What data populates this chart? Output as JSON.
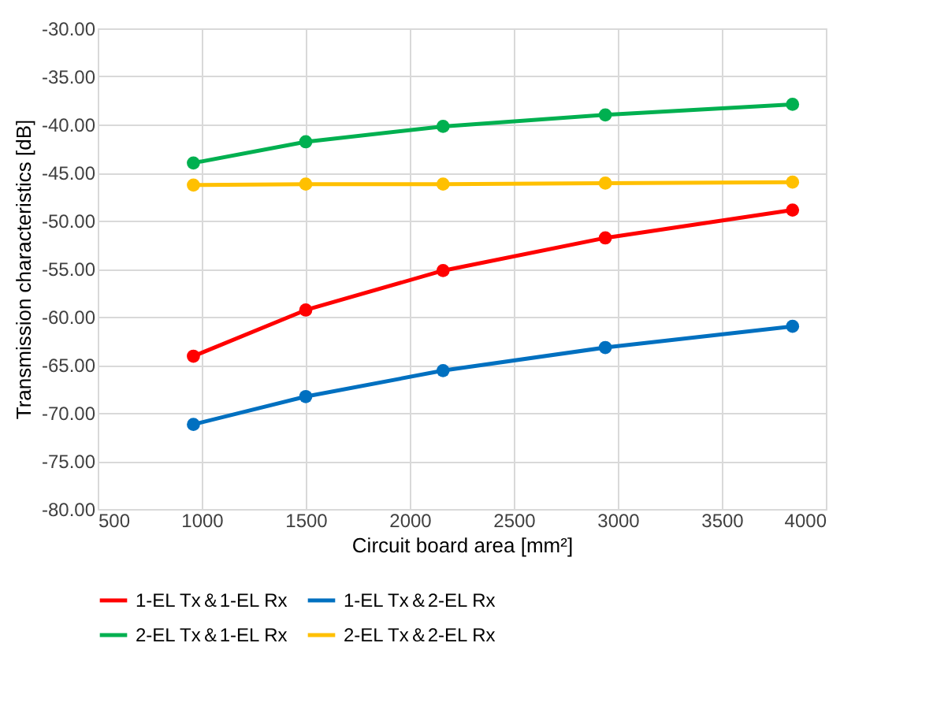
{
  "chart_data": {
    "type": "line",
    "xlabel": "Circuit board area [mm²]",
    "ylabel": "Transmission characteristics [dB]",
    "x": [
      960,
      1500,
      2160,
      2940,
      3840
    ],
    "series": [
      {
        "name": "1-EL Tx＆1-EL Rx",
        "color": "#ff0000",
        "values": [
          -64.1,
          -59.3,
          -55.2,
          -51.8,
          -48.9
        ]
      },
      {
        "name": "1-EL Tx＆2-EL Rx",
        "color": "#0070c0",
        "values": [
          -71.2,
          -68.3,
          -65.6,
          -63.2,
          -61.0
        ]
      },
      {
        "name": "2-EL Tx＆1-EL Rx",
        "color": "#00b050",
        "values": [
          -44.0,
          -41.8,
          -40.2,
          -39.0,
          -37.9
        ]
      },
      {
        "name": "2-EL Tx＆2-EL Rx",
        "color": "#ffc000",
        "values": [
          -46.3,
          -46.2,
          -46.2,
          -46.1,
          -46.0
        ]
      }
    ],
    "xlim": [
      500,
      4000
    ],
    "xticks": [
      500,
      1000,
      1500,
      2000,
      2500,
      3000,
      3500,
      4000
    ],
    "ylim": [
      -80,
      -30
    ],
    "yticks": [
      {
        "value": -80,
        "label": "-80.00"
      },
      {
        "value": -75,
        "label": "-75.00"
      },
      {
        "value": -70,
        "label": "-70.00"
      },
      {
        "value": -65,
        "label": "-65.00"
      },
      {
        "value": -60,
        "label": "-60.00"
      },
      {
        "value": -55,
        "label": "-55.00"
      },
      {
        "value": -50,
        "label": "-50.00"
      },
      {
        "value": -45,
        "label": "-45.00"
      },
      {
        "value": -40,
        "label": "-40.00"
      },
      {
        "value": -35,
        "label": "-35.00"
      },
      {
        "value": -30,
        "label": "-30.00"
      }
    ],
    "grid": true,
    "legend": "bottom",
    "marker": "circle",
    "line_style": "solid"
  }
}
